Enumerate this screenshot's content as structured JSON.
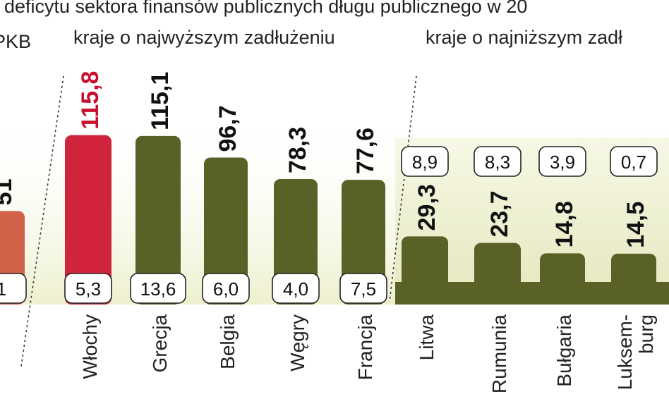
{
  "header": {
    "title": "deficytu sektora finansów publicznych długu publicznego w 20",
    "unit": "PKB",
    "group_high": "kraje o najwyższym zadłużeniu",
    "group_low": "kraje o najniższym zadł"
  },
  "colors": {
    "bar_dark": "#5a6127",
    "bar_red": "#d0243c",
    "bar_partial": "#d2614a",
    "label_red": "#c8102e",
    "band_light": "#eef0cf"
  },
  "chart_data": {
    "type": "bar",
    "categories": [
      "",
      "Włochy",
      "Grecja",
      "Belgia",
      "Węgry",
      "Francja",
      "Litwa",
      "Rumunia",
      "Bułgaria",
      "Luksem-\nburg"
    ],
    "series": [
      {
        "values": [
          51,
          115.8,
          115.1,
          96.7,
          78.3,
          77.6,
          29.3,
          23.7,
          14.8,
          14.5
        ]
      }
    ],
    "value_labels": [
      "51",
      "115,8",
      "115,1",
      "96,7",
      "78,3",
      "77,6",
      "29,3",
      "23,7",
      "14,8",
      "14,5"
    ],
    "deficit_labels": [
      "1",
      "5,3",
      "13,6",
      "6,0",
      "4,0",
      "7,5",
      "8,9",
      "8,3",
      "3,9",
      "0,7"
    ],
    "groups": [
      "kraje o najwyższym zadłużeniu",
      "kraje o najniższym zadł"
    ]
  }
}
